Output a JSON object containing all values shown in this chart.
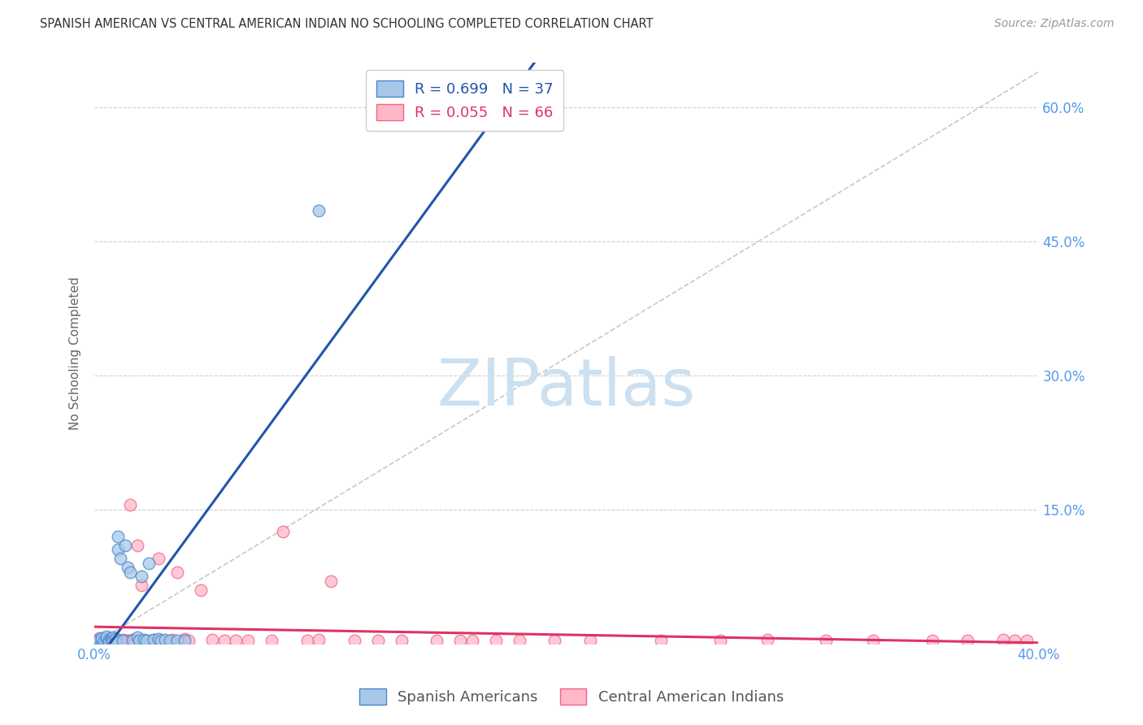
{
  "title": "SPANISH AMERICAN VS CENTRAL AMERICAN INDIAN NO SCHOOLING COMPLETED CORRELATION CHART",
  "source": "Source: ZipAtlas.com",
  "ylabel": "No Schooling Completed",
  "xlim": [
    0.0,
    0.4
  ],
  "ylim": [
    0.0,
    0.65
  ],
  "yticks": [
    0.0,
    0.15,
    0.3,
    0.45,
    0.6
  ],
  "xticks": [
    0.0,
    0.1,
    0.2,
    0.3,
    0.4
  ],
  "xtick_labels": [
    "0.0%",
    "",
    "",
    "",
    "40.0%"
  ],
  "right_ytick_labels": [
    "",
    "15.0%",
    "30.0%",
    "45.0%",
    "60.0%"
  ],
  "grid_color": "#d0d0d0",
  "bg_color": "#ffffff",
  "legend_r1": "R = 0.699",
  "legend_n1": "N = 37",
  "legend_r2": "R = 0.055",
  "legend_n2": "N = 66",
  "blue_fill": "#a8c8e8",
  "blue_edge": "#4488cc",
  "pink_fill": "#ffb8c8",
  "pink_edge": "#ee6688",
  "blue_line": "#2255aa",
  "pink_line": "#dd3366",
  "dash_color": "#bbbbbb",
  "tick_color": "#5599ee",
  "watermark_color": "#cce0f0",
  "sa_x": [
    0.001,
    0.002,
    0.003,
    0.003,
    0.004,
    0.005,
    0.005,
    0.006,
    0.006,
    0.007,
    0.007,
    0.008,
    0.008,
    0.009,
    0.009,
    0.01,
    0.01,
    0.011,
    0.012,
    0.013,
    0.014,
    0.015,
    0.016,
    0.018,
    0.019,
    0.02,
    0.021,
    0.022,
    0.023,
    0.025,
    0.027,
    0.028,
    0.03,
    0.032,
    0.035,
    0.038,
    0.095
  ],
  "sa_y": [
    0.002,
    0.004,
    0.003,
    0.006,
    0.003,
    0.005,
    0.008,
    0.004,
    0.002,
    0.006,
    0.003,
    0.007,
    0.003,
    0.005,
    0.002,
    0.12,
    0.105,
    0.095,
    0.003,
    0.11,
    0.085,
    0.08,
    0.003,
    0.007,
    0.003,
    0.075,
    0.004,
    0.003,
    0.09,
    0.004,
    0.005,
    0.003,
    0.004,
    0.003,
    0.003,
    0.003,
    0.485
  ],
  "ca_x": [
    0.001,
    0.002,
    0.002,
    0.003,
    0.003,
    0.004,
    0.004,
    0.005,
    0.005,
    0.006,
    0.006,
    0.007,
    0.008,
    0.008,
    0.009,
    0.01,
    0.011,
    0.012,
    0.013,
    0.014,
    0.015,
    0.015,
    0.016,
    0.018,
    0.02,
    0.022,
    0.024,
    0.025,
    0.027,
    0.03,
    0.033,
    0.035,
    0.038,
    0.04,
    0.045,
    0.05,
    0.055,
    0.06,
    0.065,
    0.075,
    0.08,
    0.09,
    0.095,
    0.1,
    0.11,
    0.12,
    0.13,
    0.145,
    0.155,
    0.16,
    0.17,
    0.18,
    0.195,
    0.21,
    0.24,
    0.265,
    0.285,
    0.31,
    0.33,
    0.355,
    0.37,
    0.385,
    0.39,
    0.395,
    0.003,
    0.006
  ],
  "ca_y": [
    0.003,
    0.004,
    0.006,
    0.002,
    0.005,
    0.003,
    0.006,
    0.003,
    0.005,
    0.004,
    0.006,
    0.003,
    0.003,
    0.005,
    0.003,
    0.004,
    0.002,
    0.004,
    0.003,
    0.003,
    0.155,
    0.003,
    0.004,
    0.11,
    0.065,
    0.003,
    0.003,
    0.004,
    0.095,
    0.003,
    0.004,
    0.08,
    0.005,
    0.003,
    0.06,
    0.004,
    0.003,
    0.003,
    0.003,
    0.003,
    0.125,
    0.003,
    0.004,
    0.07,
    0.003,
    0.003,
    0.003,
    0.003,
    0.003,
    0.003,
    0.003,
    0.003,
    0.003,
    0.003,
    0.003,
    0.003,
    0.004,
    0.003,
    0.003,
    0.003,
    0.003,
    0.004,
    0.003,
    0.003,
    0.003,
    0.003
  ]
}
